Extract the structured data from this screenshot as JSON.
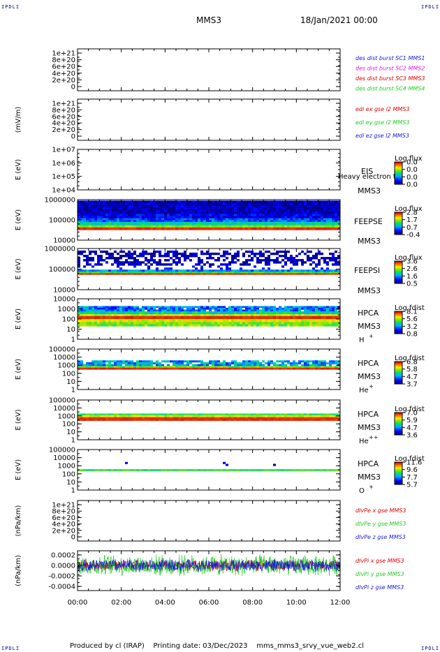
{
  "header": {
    "corner_tl": "IPDLI",
    "corner_tr": "IPDLI",
    "corner_bl": "IPDLI",
    "corner_br": "IPDLI",
    "spacecraft": "MMS3",
    "datetime": "18/Jan/2021 00:00"
  },
  "footer": {
    "produced_by": "Produced by cl (IRAP)",
    "printing_date": "Printing date: 03/Dec/2023",
    "filename": "mms_mms3_srvy_vue_web2.cl"
  },
  "colors": {
    "blue": "#1a1adc",
    "magenta": "#e020e0",
    "red": "#dd0000",
    "green": "#22cc22",
    "yellow": "#f0e020",
    "dark_blue": "#00008b"
  },
  "chart_data": [
    {
      "id": "p1",
      "type": "line",
      "ylabel": "",
      "yticks": [
        "1e+21",
        "8e+20",
        "6e+20",
        "4e+20",
        "2e+20",
        "0"
      ],
      "ylim": [
        0,
        1.1e+21
      ],
      "series": [
        {
          "name": "des dist burst SC1 MMS1",
          "color": "#1a1adc"
        },
        {
          "name": "des dist burst SC2 MMS2",
          "color": "#e020e0"
        },
        {
          "name": "des dist burst SC3 MMS3",
          "color": "#dd0000"
        },
        {
          "name": "des dist burst SC4 MMS4",
          "color": "#22cc22"
        }
      ]
    },
    {
      "id": "p2",
      "type": "line",
      "ylabel": "(mV/m)",
      "yticks": [
        "1e+21",
        "8e+20",
        "6e+20",
        "4e+20",
        "2e+20",
        "0"
      ],
      "ylim": [
        0,
        1.1e+21
      ],
      "series": [
        {
          "name": "edi ex gse l2 MMS3",
          "color": "#dd0000"
        },
        {
          "name": "edi ey gse l2 MMS3",
          "color": "#22cc22"
        },
        {
          "name": "edi ez gse l2 MMS3",
          "color": "#1a1adc"
        }
      ]
    },
    {
      "id": "p3",
      "type": "heatmap",
      "ylabel": "E (eV)",
      "yticks": [
        "1e+07",
        "1e+06",
        "1e+05",
        "1e+04"
      ],
      "ylim": [
        10000,
        10000000
      ],
      "yscale": "log",
      "instrument": "EIS",
      "spacecraft": "MMS3",
      "overlay_text": "Heavy electron ta",
      "cbar_title": "Log flux",
      "cbar_ticks": [
        "0.0",
        "0.0",
        "0.0",
        "0.0"
      ],
      "bands": []
    },
    {
      "id": "p4",
      "type": "heatmap",
      "ylabel": "E (eV)",
      "yticks": [
        "1000000",
        "100000",
        "10000"
      ],
      "ylim": [
        10000,
        1000000
      ],
      "yscale": "log",
      "instrument": "FEEPSE",
      "spacecraft": "MMS3",
      "cbar_title": "Log flux",
      "cbar_ticks": [
        "2.8",
        "1.7",
        "0.7",
        "-0.4"
      ],
      "bands": [
        {
          "from": 200000,
          "to": 900000,
          "level": 0.05,
          "noise": 0.12
        },
        {
          "from": 120000,
          "to": 200000,
          "level": 0.12,
          "noise": 0.1
        },
        {
          "from": 80000,
          "to": 120000,
          "level": 0.25,
          "noise": 0.1
        },
        {
          "from": 55000,
          "to": 80000,
          "level": 0.45,
          "noise": 0.08
        },
        {
          "from": 42000,
          "to": 55000,
          "level": 0.62,
          "noise": 0.05
        },
        {
          "from": 32000,
          "to": 42000,
          "level": 0.95,
          "noise": 0.02
        }
      ]
    },
    {
      "id": "p5",
      "type": "heatmap",
      "ylabel": "E (eV)",
      "yticks": [
        "1000000",
        "100000",
        "10000"
      ],
      "ylim": [
        10000,
        1000000
      ],
      "yscale": "log",
      "instrument": "FEEPSI",
      "spacecraft": "MMS3",
      "cbar_title": "Log flux",
      "cbar_ticks": [
        "3.6",
        "2.6",
        "1.6",
        "0.5"
      ],
      "bands": [
        {
          "from": 150000,
          "to": 800000,
          "level": 0.05,
          "noise": 0.1,
          "sparse": 0.55
        },
        {
          "from": 95000,
          "to": 150000,
          "level": 0.12,
          "noise": 0.1,
          "sparse": 0.2
        },
        {
          "from": 75000,
          "to": 95000,
          "level": 0.3,
          "noise": 0.1
        },
        {
          "from": 63000,
          "to": 75000,
          "level": 0.55,
          "noise": 0.06
        },
        {
          "from": 54000,
          "to": 63000,
          "level": 0.95,
          "noise": 0.02
        }
      ]
    },
    {
      "id": "p6",
      "type": "heatmap",
      "ylabel": "E (eV)",
      "yticks": [
        "10000",
        "1000",
        "100",
        "10",
        "1"
      ],
      "ylim": [
        1,
        40000
      ],
      "yscale": "log",
      "instrument": "HPCA",
      "spacecraft": "MMS3",
      "species": "H",
      "species_sup": "+",
      "cbar_title": "Log fdist",
      "cbar_ticks": [
        "8.1",
        "5.6",
        "3.2",
        "0.8"
      ],
      "bands": [
        {
          "from": 1500,
          "to": 6000,
          "level": 0.3,
          "noise": 0.15,
          "sparse": 0.95
        },
        {
          "from": 700,
          "to": 1500,
          "level": 0.45,
          "noise": 0.1
        },
        {
          "from": 450,
          "to": 700,
          "level": 0.7,
          "noise": 0.06
        },
        {
          "from": 200,
          "to": 450,
          "level": 0.95,
          "noise": 0.02
        },
        {
          "from": 90,
          "to": 200,
          "level": 0.72,
          "noise": 0.08
        },
        {
          "from": 30,
          "to": 90,
          "level": 0.62,
          "noise": 0.08
        }
      ]
    },
    {
      "id": "p7",
      "type": "heatmap",
      "ylabel": "E (eV)",
      "yticks": [
        "100000",
        "10000",
        "1000",
        "100",
        "10",
        "1"
      ],
      "ylim": [
        1,
        100000
      ],
      "yscale": "log",
      "instrument": "HPCA",
      "spacecraft": "MMS3",
      "species": "He",
      "species_sup": "+",
      "cbar_title": "Log fdist",
      "cbar_ticks": [
        "6.8",
        "5.8",
        "4.7",
        "3.7"
      ],
      "bands": [
        {
          "from": 800,
          "to": 4000,
          "level": 0.35,
          "noise": 0.15,
          "sparse": 0.8
        },
        {
          "from": 500,
          "to": 800,
          "level": 0.6,
          "noise": 0.08
        },
        {
          "from": 300,
          "to": 500,
          "level": 0.95,
          "noise": 0.02
        }
      ]
    },
    {
      "id": "p8",
      "type": "heatmap",
      "ylabel": "E (eV)",
      "yticks": [
        "100000",
        "10000",
        "1000",
        "100",
        "10",
        "1"
      ],
      "ylim": [
        1,
        100000
      ],
      "yscale": "log",
      "instrument": "HPCA",
      "spacecraft": "MMS3",
      "species": "He",
      "species_sup": "++",
      "cbar_title": "Log fdist",
      "cbar_ticks": [
        "7.0",
        "5.9",
        "4.7",
        "3.6"
      ],
      "bands": [
        {
          "from": 1200,
          "to": 2000,
          "level": 0.55,
          "noise": 0.06
        },
        {
          "from": 700,
          "to": 1200,
          "level": 0.7,
          "noise": 0.06
        },
        {
          "from": 250,
          "to": 700,
          "level": 0.95,
          "noise": 0.02
        }
      ]
    },
    {
      "id": "p9",
      "type": "heatmap",
      "ylabel": "E (eV)",
      "yticks": [
        "100000",
        "10000",
        "1000",
        "100",
        "10",
        "1"
      ],
      "ylim": [
        1,
        100000
      ],
      "yscale": "log",
      "instrument": "HPCA",
      "spacecraft": "MMS3",
      "species": "O",
      "species_sup": "+",
      "cbar_title": "Log fdist",
      "cbar_ticks": [
        "11.6",
        "9.6",
        "7.7",
        "5.7"
      ],
      "bands": [
        {
          "from": 230,
          "to": 380,
          "level": 0.55,
          "noise": 0.05
        },
        {
          "from": 1000,
          "to": 3000,
          "level": 0.1,
          "noise": 0.05,
          "sparse": 0.015
        }
      ]
    },
    {
      "id": "p10",
      "type": "line",
      "ylabel": "(nPa/km)",
      "yticks": [
        "1e+21",
        "8e+20",
        "6e+20",
        "4e+20",
        "2e+20",
        "0"
      ],
      "ylim": [
        0,
        1.1e+21
      ],
      "series": [
        {
          "name": "dIvPe x gse MMS3",
          "color": "#dd0000"
        },
        {
          "name": "dIvPe y gse MMS3",
          "color": "#22cc22"
        },
        {
          "name": "dIvPe z gse MMS3",
          "color": "#1a1adc"
        }
      ]
    },
    {
      "id": "p11",
      "type": "line",
      "ylabel": "(nPa/km)",
      "yticks": [
        "0.0002",
        "0.0000",
        "-0.0002",
        "-0.0004"
      ],
      "ylim": [
        -0.00048,
        0.00028
      ],
      "series": [
        {
          "name": "dIvPi x gse MMS3",
          "color": "#dd0000",
          "amp": 0.00012
        },
        {
          "name": "dIvPi y gse MMS3",
          "color": "#22cc22",
          "amp": 0.00022
        },
        {
          "name": "dIvPi z gse MMS3",
          "color": "#1a1adc",
          "amp": 0.00013
        }
      ]
    }
  ],
  "xaxis": {
    "ticks": [
      "00:00",
      "02:00",
      "04:00",
      "06:00",
      "08:00",
      "10:00",
      "12:00"
    ],
    "range_hours": [
      0,
      12
    ]
  }
}
